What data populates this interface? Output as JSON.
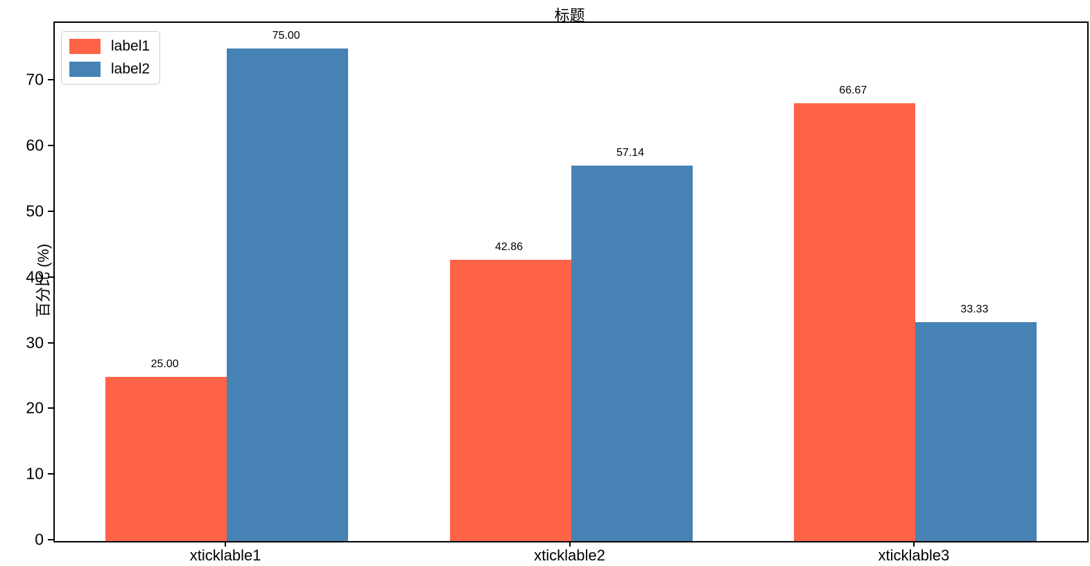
{
  "chart_data": {
    "type": "bar",
    "title": "标题",
    "xlabel": "",
    "ylabel": "百分比 (%)",
    "categories": [
      "xticklable1",
      "xticklable2",
      "xticklable3"
    ],
    "series": [
      {
        "name": "label1",
        "color": "#FF6347",
        "values": [
          25.0,
          42.86,
          66.67
        ],
        "value_labels": [
          "25.00",
          "42.86",
          "66.67"
        ]
      },
      {
        "name": "label2",
        "color": "#4682B4",
        "values": [
          75.0,
          57.14,
          33.33
        ],
        "value_labels": [
          "75.00",
          "57.14",
          "33.33"
        ]
      }
    ],
    "y_ticks": [
      0,
      10,
      20,
      30,
      40,
      50,
      60,
      70
    ],
    "ylim": [
      0,
      78.9
    ],
    "grid": false,
    "legend_position": "upper-left",
    "bar_value_labels_shown": true,
    "spine_color": "#000000",
    "background_color": "#ffffff"
  }
}
